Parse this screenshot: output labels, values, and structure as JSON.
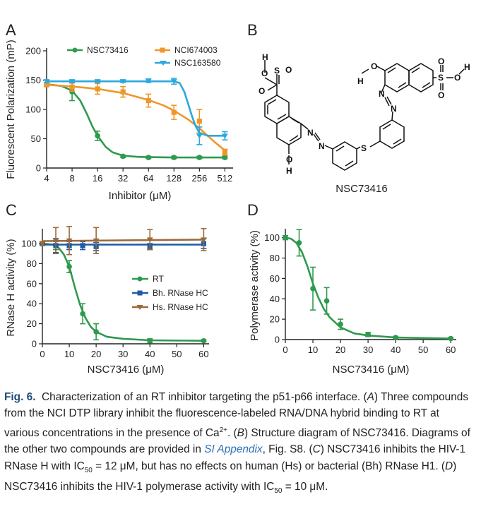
{
  "panels": [
    {
      "id": "A",
      "letter": "A"
    },
    {
      "id": "B",
      "letter": "B"
    },
    {
      "id": "C",
      "letter": "C"
    },
    {
      "id": "D",
      "letter": "D"
    }
  ],
  "structure": {
    "compound_name": "NSC73416",
    "atoms": {
      "O": "O",
      "S": "S",
      "H": "H",
      "N": "N"
    }
  },
  "colors": {
    "green": "#2e9a4e",
    "orange": "#f0962a",
    "cyan": "#2aa8e0",
    "blue": "#1f5ba8",
    "brown": "#9c6a3a"
  },
  "chart_data": [
    {
      "panel": "A",
      "type": "line",
      "xscale": "log2",
      "xlabel": "Inhibitor (μM)",
      "ylabel": "Fluorescent Polarization (mP)",
      "xticks": [
        4,
        8,
        16,
        32,
        64,
        128,
        256,
        512
      ],
      "xtick_labels": [
        "4",
        "8",
        "16",
        "32",
        "64",
        "128",
        "256",
        "512"
      ],
      "yticks": [
        0,
        50,
        100,
        150,
        200
      ],
      "xlim": [
        4,
        640
      ],
      "ylim": [
        0,
        200
      ],
      "legend_position": "top-left",
      "series": [
        {
          "name": "NSC73416",
          "color": "#2e9a4e",
          "marker": "circle",
          "points": [
            {
              "x": 4,
              "y": 142,
              "err": 3
            },
            {
              "x": 8,
              "y": 130,
              "err": 15
            },
            {
              "x": 16,
              "y": 55,
              "err": 8
            },
            {
              "x": 32,
              "y": 20,
              "err": 2
            },
            {
              "x": 64,
              "y": 18,
              "err": 2
            },
            {
              "x": 128,
              "y": 18,
              "err": 2
            },
            {
              "x": 256,
              "y": 18,
              "err": 2
            },
            {
              "x": 512,
              "y": 18,
              "err": 2
            }
          ],
          "curve": [
            {
              "x": 4,
              "y": 143
            },
            {
              "x": 6,
              "y": 140
            },
            {
              "x": 8,
              "y": 132
            },
            {
              "x": 10,
              "y": 115
            },
            {
              "x": 12,
              "y": 92
            },
            {
              "x": 14,
              "y": 70
            },
            {
              "x": 16,
              "y": 55
            },
            {
              "x": 20,
              "y": 36
            },
            {
              "x": 24,
              "y": 27
            },
            {
              "x": 32,
              "y": 21
            },
            {
              "x": 48,
              "y": 19
            },
            {
              "x": 64,
              "y": 18.5
            },
            {
              "x": 128,
              "y": 18
            },
            {
              "x": 512,
              "y": 18
            }
          ]
        },
        {
          "name": "NCI674003",
          "color": "#f0962a",
          "marker": "square",
          "points": [
            {
              "x": 4,
              "y": 142,
              "err": 3
            },
            {
              "x": 8,
              "y": 138,
              "err": 7
            },
            {
              "x": 16,
              "y": 135,
              "err": 9
            },
            {
              "x": 32,
              "y": 130,
              "err": 9
            },
            {
              "x": 64,
              "y": 115,
              "err": 11
            },
            {
              "x": 128,
              "y": 95,
              "err": 12
            },
            {
              "x": 256,
              "y": 80,
              "err": 20
            },
            {
              "x": 512,
              "y": 27,
              "err": 5
            }
          ],
          "curve": [
            {
              "x": 4,
              "y": 142
            },
            {
              "x": 8,
              "y": 139
            },
            {
              "x": 16,
              "y": 135
            },
            {
              "x": 32,
              "y": 128
            },
            {
              "x": 64,
              "y": 116
            },
            {
              "x": 96,
              "y": 107
            },
            {
              "x": 128,
              "y": 98
            },
            {
              "x": 192,
              "y": 82
            },
            {
              "x": 256,
              "y": 68
            },
            {
              "x": 384,
              "y": 45
            },
            {
              "x": 512,
              "y": 30
            }
          ]
        },
        {
          "name": "NSC163580",
          "color": "#2aa8e0",
          "marker": "triangle",
          "points": [
            {
              "x": 4,
              "y": 148,
              "err": 2
            },
            {
              "x": 8,
              "y": 148,
              "err": 2
            },
            {
              "x": 16,
              "y": 148,
              "err": 2
            },
            {
              "x": 32,
              "y": 148,
              "err": 2
            },
            {
              "x": 64,
              "y": 149,
              "err": 3
            },
            {
              "x": 128,
              "y": 148,
              "err": 5
            },
            {
              "x": 256,
              "y": 55,
              "err": 15
            },
            {
              "x": 512,
              "y": 55,
              "err": 7
            }
          ],
          "curve": [
            {
              "x": 4,
              "y": 148
            },
            {
              "x": 64,
              "y": 148
            },
            {
              "x": 128,
              "y": 148
            },
            {
              "x": 150,
              "y": 145
            },
            {
              "x": 170,
              "y": 130
            },
            {
              "x": 190,
              "y": 108
            },
            {
              "x": 210,
              "y": 88
            },
            {
              "x": 230,
              "y": 72
            },
            {
              "x": 256,
              "y": 60
            },
            {
              "x": 320,
              "y": 55
            },
            {
              "x": 512,
              "y": 55
            }
          ]
        }
      ]
    },
    {
      "panel": "C",
      "type": "line",
      "xlabel": "NSC73416 (μM)",
      "ylabel": "RNase H activity (%)",
      "xticks": [
        0,
        10,
        20,
        30,
        40,
        50,
        60
      ],
      "yticks": [
        0,
        20,
        40,
        60,
        80,
        100
      ],
      "xlim": [
        0,
        62
      ],
      "ylim": [
        0,
        112
      ],
      "legend_position": "center-right",
      "series": [
        {
          "name": "RT",
          "color": "#2e9a4e",
          "marker": "circle",
          "points": [
            {
              "x": 0,
              "y": 100,
              "err": 2
            },
            {
              "x": 5,
              "y": 98,
              "err": 4
            },
            {
              "x": 10,
              "y": 77,
              "err": 6
            },
            {
              "x": 15,
              "y": 30,
              "err": 10
            },
            {
              "x": 20,
              "y": 12,
              "err": 8
            },
            {
              "x": 40,
              "y": 3,
              "err": 2
            },
            {
              "x": 60,
              "y": 3,
              "err": 1
            }
          ],
          "curve": [
            {
              "x": 0,
              "y": 100
            },
            {
              "x": 4,
              "y": 99
            },
            {
              "x": 6,
              "y": 96
            },
            {
              "x": 8,
              "y": 89
            },
            {
              "x": 10,
              "y": 77
            },
            {
              "x": 12,
              "y": 57
            },
            {
              "x": 14,
              "y": 39
            },
            {
              "x": 16,
              "y": 26
            },
            {
              "x": 18,
              "y": 17
            },
            {
              "x": 20,
              "y": 12
            },
            {
              "x": 24,
              "y": 7
            },
            {
              "x": 30,
              "y": 5
            },
            {
              "x": 40,
              "y": 3.5
            },
            {
              "x": 60,
              "y": 3
            }
          ]
        },
        {
          "name": "Bh. RNase HC",
          "color": "#1f5ba8",
          "marker": "square",
          "points": [
            {
              "x": 0,
              "y": 100,
              "err": 1
            },
            {
              "x": 5,
              "y": 98,
              "err": 7
            },
            {
              "x": 10,
              "y": 98,
              "err": 4
            },
            {
              "x": 15,
              "y": 98,
              "err": 4
            },
            {
              "x": 20,
              "y": 97,
              "err": 4
            },
            {
              "x": 40,
              "y": 97,
              "err": 3
            },
            {
              "x": 60,
              "y": 100,
              "err": 5
            }
          ],
          "curve": [
            {
              "x": 0,
              "y": 99
            },
            {
              "x": 60,
              "y": 99
            }
          ]
        },
        {
          "name": "Hs. RNase HC",
          "color": "#9c6a3a",
          "marker": "triangle",
          "points": [
            {
              "x": 0,
              "y": 100,
              "err": 2
            },
            {
              "x": 5,
              "y": 103,
              "err": 13
            },
            {
              "x": 10,
              "y": 103,
              "err": 14
            },
            {
              "x": 20,
              "y": 103,
              "err": 13
            },
            {
              "x": 40,
              "y": 104,
              "err": 10
            },
            {
              "x": 60,
              "y": 104,
              "err": 11
            }
          ],
          "curve": [
            {
              "x": 0,
              "y": 102.5
            },
            {
              "x": 60,
              "y": 104
            }
          ]
        }
      ]
    },
    {
      "panel": "D",
      "type": "line",
      "xlabel": "NSC73416 (μM)",
      "ylabel": "Polymerase activity (%)",
      "xticks": [
        0,
        10,
        20,
        30,
        40,
        50,
        60
      ],
      "yticks": [
        0,
        20,
        40,
        60,
        80,
        100
      ],
      "xlim": [
        0,
        62
      ],
      "ylim": [
        0,
        106
      ],
      "series": [
        {
          "name": "",
          "color": "#2e9a4e",
          "marker": "circle",
          "points": [
            {
              "x": 0,
              "y": 100,
              "err": 2
            },
            {
              "x": 5,
              "y": 95,
              "err": 13
            },
            {
              "x": 10,
              "y": 50,
              "err": 21
            },
            {
              "x": 15,
              "y": 38,
              "err": 13
            },
            {
              "x": 20,
              "y": 15,
              "err": 5
            },
            {
              "x": 30,
              "y": 5,
              "err": 2
            },
            {
              "x": 40,
              "y": 2,
              "err": 1
            },
            {
              "x": 60,
              "y": 1,
              "err": 1
            }
          ],
          "curve": [
            {
              "x": 0,
              "y": 100
            },
            {
              "x": 2,
              "y": 99
            },
            {
              "x": 4,
              "y": 95
            },
            {
              "x": 6,
              "y": 86
            },
            {
              "x": 8,
              "y": 72
            },
            {
              "x": 10,
              "y": 55
            },
            {
              "x": 12,
              "y": 41
            },
            {
              "x": 14,
              "y": 30
            },
            {
              "x": 16,
              "y": 22
            },
            {
              "x": 20,
              "y": 12
            },
            {
              "x": 25,
              "y": 6
            },
            {
              "x": 30,
              "y": 4
            },
            {
              "x": 40,
              "y": 2
            },
            {
              "x": 60,
              "y": 1
            }
          ]
        }
      ]
    }
  ],
  "caption": {
    "figno": "Fig. 6.",
    "s0": "Characterization of an RT inhibitor targeting the p51-p66 interface. (",
    "s1": "A",
    "s2": ") Three compounds from the NCI DTP library inhibit the fluorescence-labeled RNA/DNA hybrid binding to RT at various concentrations in the presence of Ca",
    "s2_sup": "2+",
    "s3": ". (",
    "s4": "B",
    "s5": ") Structure diagram of NSC73416. Diagrams of the other two compounds are provided in ",
    "link": "SI Appendix",
    "s6": ", Fig. S8. (",
    "s7": "C",
    "s8": ") NSC73416 inhibits the HIV-1 RNase H with IC",
    "s8_sub": "50",
    "s9": " = 12 μM, but has no effects on human (Hs) or bacterial (Bh) RNase H1. (",
    "s10": "D",
    "s11": ") NSC73416 inhibits the HIV-1 polymerase activity with IC",
    "s11_sub": "50",
    "s12": " = 10 μM."
  }
}
